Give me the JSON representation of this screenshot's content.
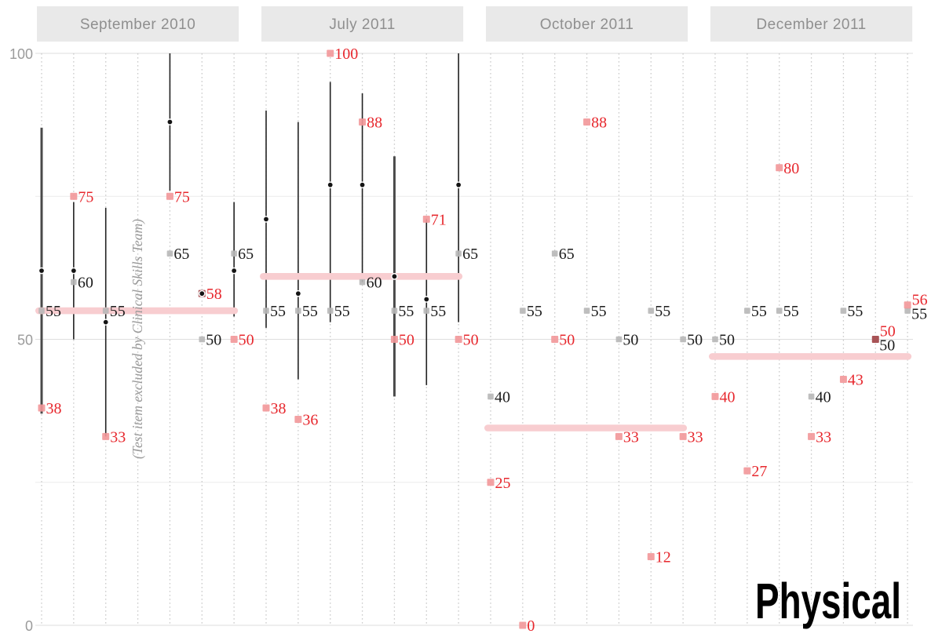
{
  "chart_data": {
    "type": "scatter",
    "title": "Physical",
    "annotation": "(Test item excluded by Clinical Skills Team)",
    "ylim": [
      0,
      100
    ],
    "yticks_labeled": [
      0,
      50,
      100
    ],
    "gridlines_minor": [
      25,
      75
    ],
    "legend": "none",
    "colors": {
      "header_bg": "#e9e9e9",
      "header_text": "#8f8f8f",
      "axis_text": "#9b9b9b",
      "grid_major": "#dedede",
      "grid_minor": "#ececec",
      "grid_vertical": "#cbcbcb",
      "range_line": "#222222",
      "range_line_thick": "#4a4a4a",
      "mean_dot": "#141414",
      "gray_marker": "#b7b7b7",
      "red_marker": "#f29799",
      "dark_red_marker": "#a85356",
      "red_label": "#e7282e",
      "black_label": "#1b1b1b",
      "band": "#f8cdd0",
      "annotation_text": "#9a9a9a",
      "title_text": "#000000"
    },
    "panels": [
      {
        "label": "September 2010",
        "band_value": 55,
        "columns": [
          {
            "range": [
              37,
              87
            ],
            "mean": 62,
            "gray": 55,
            "red": 38,
            "thick": true
          },
          {
            "range": [
              50,
              74
            ],
            "mean": 62,
            "gray": 60,
            "red": 75
          },
          {
            "range": [
              33,
              73
            ],
            "mean": 53,
            "gray": 55,
            "red": 33
          },
          {
            "annotation": true
          },
          {
            "range": [
              76,
              100
            ],
            "mean": 88,
            "gray": 65,
            "red": 75
          },
          {
            "mean": 58,
            "gray": 50,
            "red": 58,
            "dark": true
          },
          {
            "range": [
              54,
              74
            ],
            "mean": 62,
            "gray": 65,
            "red": 50
          }
        ]
      },
      {
        "label": "July 2011",
        "band_value": 61,
        "columns": [
          {
            "range": [
              52,
              90
            ],
            "mean": 71,
            "gray": 55,
            "red": 38
          },
          {
            "range": [
              43,
              88
            ],
            "mean": 58,
            "gray": 55,
            "red": 36
          },
          {
            "range": [
              53,
              95
            ],
            "mean": 77,
            "gray": 55,
            "red": 100
          },
          {
            "range": [
              60,
              93
            ],
            "mean": 77,
            "gray": 60,
            "red": 88
          },
          {
            "range": [
              40,
              82
            ],
            "mean": 61,
            "gray": 55,
            "red": 50,
            "thick": true
          },
          {
            "range": [
              42,
              71
            ],
            "mean": 57,
            "gray": 55,
            "red": 71
          },
          {
            "range": [
              53,
              100
            ],
            "mean": 77,
            "gray": 65,
            "red": 50
          }
        ]
      },
      {
        "label": "October 2011",
        "band_value": 34.5,
        "columns": [
          {
            "gray": 40,
            "red": 25
          },
          {
            "gray": 55,
            "red": 0
          },
          {
            "gray": 65,
            "red": 50
          },
          {
            "gray": 55,
            "red": 88
          },
          {
            "gray": 50,
            "red": 33
          },
          {
            "gray": 55,
            "red": 12
          },
          {
            "gray": 50,
            "red": 33
          }
        ]
      },
      {
        "label": "December 2011",
        "band_value": 47,
        "columns": [
          {
            "gray": 50,
            "red": 40
          },
          {
            "gray": 55,
            "red": 27
          },
          {
            "gray": 55,
            "red": 80
          },
          {
            "gray": 40,
            "red": 33
          },
          {
            "gray": 55,
            "red": 43
          },
          {
            "gray": 50,
            "red": 50,
            "dark": true,
            "stacked": true
          },
          {
            "gray": 55,
            "red": 56,
            "stacked": true
          }
        ]
      }
    ]
  }
}
